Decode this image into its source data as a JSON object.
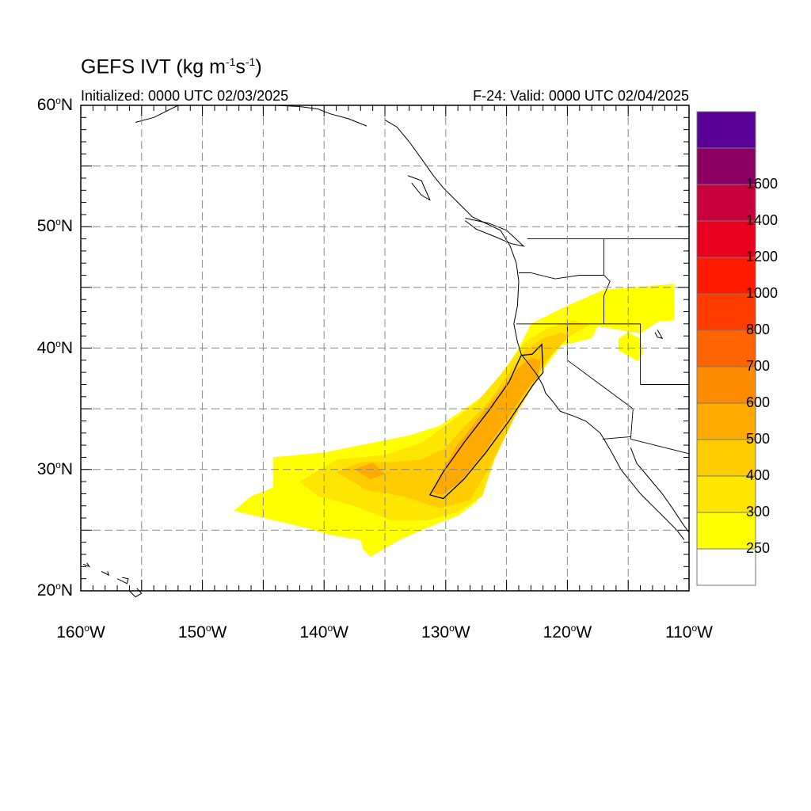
{
  "header": {
    "title_prefix": "GEFS IVT (kg m",
    "title_exp1": "-1",
    "title_mid": "s",
    "title_exp2": "-1",
    "title_suffix": ")",
    "initialized": "Initialized: 0000 UTC 02/03/2025",
    "valid": "F-24: Valid: 0000 UTC 02/04/2025"
  },
  "axes": {
    "lat_range": [
      20,
      60
    ],
    "lon_range": [
      -160,
      -110
    ],
    "lat_ticks": [
      {
        "value": 60,
        "num": "60",
        "hemi": "N"
      },
      {
        "value": 50,
        "num": "50",
        "hemi": "N"
      },
      {
        "value": 40,
        "num": "40",
        "hemi": "N"
      },
      {
        "value": 30,
        "num": "30",
        "hemi": "N"
      },
      {
        "value": 20,
        "num": "20",
        "hemi": "N"
      }
    ],
    "lon_ticks": [
      {
        "value": -160,
        "num": "160",
        "hemi": "W"
      },
      {
        "value": -150,
        "num": "150",
        "hemi": "W"
      },
      {
        "value": -140,
        "num": "140",
        "hemi": "W"
      },
      {
        "value": -130,
        "num": "130",
        "hemi": "W"
      },
      {
        "value": -120,
        "num": "120",
        "hemi": "W"
      },
      {
        "value": -110,
        "num": "110",
        "hemi": "W"
      }
    ],
    "gridlines": "dashed every 5 degrees"
  },
  "colorbar": {
    "colors": [
      "#ffffff",
      "#ffff00",
      "#ffe600",
      "#ffcc00",
      "#ffaa00",
      "#ff8c00",
      "#ff6400",
      "#ff3c00",
      "#ff1a00",
      "#e8001e",
      "#c8003c",
      "#8c0064",
      "#5a0096"
    ],
    "labels": [
      "250",
      "300",
      "400",
      "500",
      "600",
      "700",
      "800",
      "1000",
      "1200",
      "1400",
      "1600"
    ]
  }
}
